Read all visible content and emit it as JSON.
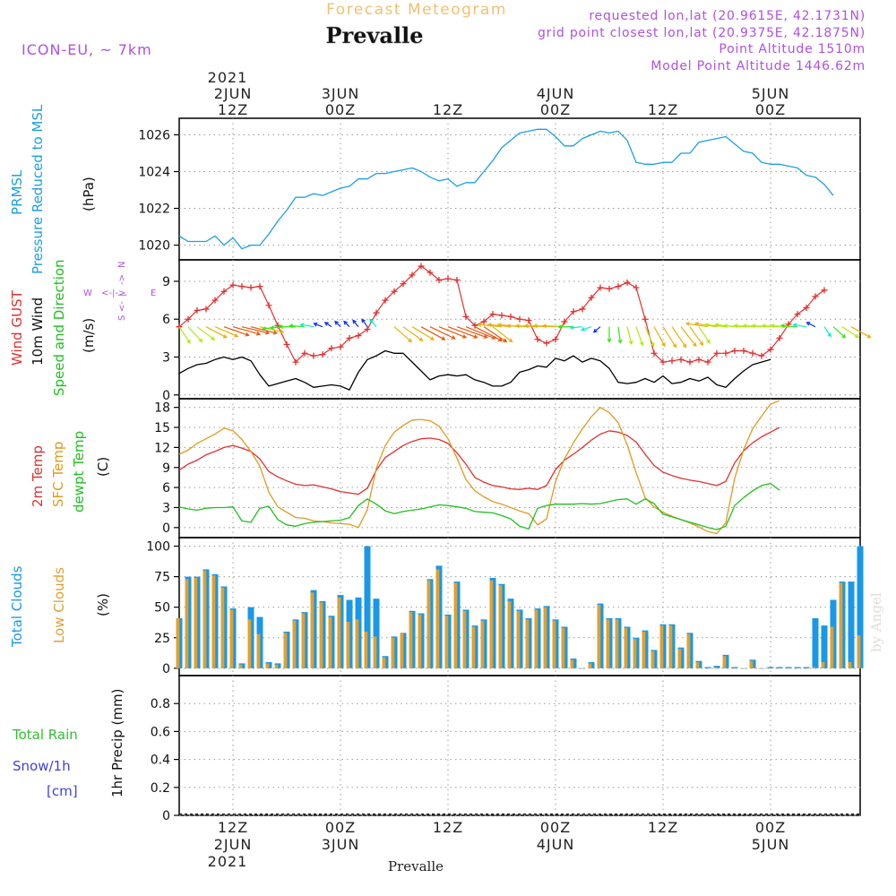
{
  "header": {
    "title": "Forecast Meteogram",
    "location": "Prevalle",
    "model": "ICON-EU, ~ 7km",
    "requested": "requested lon,lat (20.9615E, 42.1731N)",
    "grid_point": "grid point closest lon,lat (20.9375E, 42.1875N)",
    "point_altitude": "Point Altitude 1510m",
    "model_altitude": "Model Point Altitude 1446.62m"
  },
  "footer": {
    "location": "Prevalle",
    "watermark": "by Angel"
  },
  "time_axis": {
    "year": "2021",
    "ticks": [
      {
        "hour": 12,
        "top": "12Z",
        "date": "2JUN"
      },
      {
        "hour": 24,
        "top": "00Z",
        "date": "3JUN"
      },
      {
        "hour": 36,
        "top": "12Z",
        "date": ""
      },
      {
        "hour": 48,
        "top": "00Z",
        "date": "4JUN"
      },
      {
        "hour": 60,
        "top": "12Z",
        "date": ""
      },
      {
        "hour": 72,
        "top": "00Z",
        "date": "5JUN"
      }
    ],
    "range_hours": [
      6,
      82
    ]
  },
  "labels": {
    "pressure": {
      "line1": "PRMSL",
      "line2": "Pressure Reduced to MSL",
      "unit": "(hPa)"
    },
    "wind": {
      "gust": "Wind GUST",
      "wind10": "10m Wind",
      "speed_dir": "Speed and Direction",
      "unit": "(m/s)",
      "compass": {
        "n": "N",
        "s": "S",
        "w": "W",
        "e": "E",
        "ew_arrow": "<-|->",
        "ns_top": "->",
        "ns_bot": "<-",
        "ns_mid": "|"
      }
    },
    "temp": {
      "t2m": "2m Temp",
      "sfc": "SFC Temp",
      "dew": "dewpt Temp",
      "unit": "(C)"
    },
    "cloud": {
      "total": "Total Clouds",
      "low": "Low Clouds",
      "unit": "(%)"
    },
    "precip": {
      "rain": "Total   Rain",
      "snow": "Snow/1h",
      "snow_unit": "[cm]",
      "unit": "1hr Precip (mm)"
    }
  },
  "colors": {
    "pressure": "#1aa0e0",
    "gust": "#e03030",
    "wind": "#000000",
    "t2m": "#e03030",
    "sfc": "#e09a20",
    "dew": "#20c020",
    "total_cloud": "#1a98e8",
    "low_cloud": "#e0a030",
    "rain": "#30c030",
    "snow": "#4040e0",
    "title": "#f0c070",
    "info": "#b050e0"
  },
  "chart_data": [
    {
      "type": "line",
      "name": "pressure",
      "series_name": "PRMSL",
      "ylim": [
        1019.2,
        1026.9
      ],
      "yticks": [
        1020,
        1022,
        1024,
        1026
      ],
      "x_start": 6,
      "x_step": 1,
      "values": [
        1020.5,
        1020.2,
        1020.2,
        1020.2,
        1020.5,
        1020.0,
        1020.4,
        1019.8,
        1020.0,
        1020.0,
        1020.6,
        1021.3,
        1021.9,
        1022.6,
        1022.6,
        1022.8,
        1022.7,
        1022.9,
        1023.1,
        1023.2,
        1023.6,
        1023.6,
        1023.9,
        1023.9,
        1024.0,
        1024.1,
        1024.2,
        1024.0,
        1023.7,
        1023.5,
        1023.6,
        1023.2,
        1023.4,
        1023.4,
        1024.0,
        1024.6,
        1025.3,
        1025.7,
        1026.1,
        1026.2,
        1026.3,
        1026.3,
        1025.9,
        1025.4,
        1025.4,
        1025.8,
        1026.0,
        1026.2,
        1026.1,
        1026.2,
        1025.7,
        1024.5,
        1024.4,
        1024.4,
        1024.5,
        1024.5,
        1025.0,
        1025.0,
        1025.6,
        1025.7,
        1025.8,
        1025.9,
        1025.5,
        1025.1,
        1025.0,
        1024.5,
        1024.4,
        1024.4,
        1024.3,
        1024.2,
        1023.8,
        1023.7,
        1023.3,
        1022.7
      ]
    },
    {
      "type": "line",
      "name": "wind",
      "ylim": [
        -0.3,
        10.7
      ],
      "yticks": [
        0,
        3,
        6,
        9
      ],
      "x_start": 6,
      "x_step": 1,
      "series": [
        {
          "name": "Wind GUST",
          "values": [
            5.4,
            6.0,
            6.7,
            6.8,
            7.5,
            8.2,
            8.7,
            8.6,
            8.5,
            8.6,
            7.1,
            5.5,
            4.0,
            2.6,
            3.3,
            3.1,
            3.2,
            3.7,
            3.8,
            4.5,
            4.7,
            5.2,
            6.5,
            7.5,
            8.2,
            8.8,
            9.5,
            10.2,
            9.7,
            9.1,
            9.2,
            9.1,
            6.2,
            5.5,
            5.8,
            6.4,
            6.3,
            6.2,
            6.0,
            5.9,
            4.4,
            4.1,
            4.4,
            5.8,
            6.6,
            6.8,
            7.7,
            8.5,
            8.4,
            8.6,
            8.9,
            8.5,
            6.0,
            3.3,
            2.6,
            2.7,
            2.8,
            2.6,
            2.8,
            2.6,
            3.3,
            3.3,
            3.5,
            3.5,
            3.3,
            3.1,
            3.6,
            4.5,
            5.6,
            6.4,
            6.9,
            7.8,
            8.3
          ]
        },
        {
          "name": "10m Wind",
          "values": [
            1.7,
            2.1,
            2.4,
            2.5,
            2.8,
            3.0,
            2.8,
            3.0,
            2.7,
            1.6,
            0.7,
            0.9,
            1.1,
            1.3,
            1.0,
            0.6,
            0.7,
            0.8,
            0.7,
            0.4,
            1.8,
            2.8,
            3.1,
            3.5,
            3.3,
            3.3,
            2.6,
            1.9,
            1.2,
            1.5,
            1.6,
            1.5,
            1.6,
            1.2,
            1.0,
            0.7,
            0.7,
            1.0,
            1.8,
            2.0,
            2.3,
            2.2,
            2.9,
            2.7,
            3.1,
            2.6,
            2.9,
            2.7,
            2.1,
            1.0,
            0.9,
            1.0,
            1.3,
            1.0,
            1.5,
            0.9,
            1.0,
            1.3,
            1.1,
            1.4,
            0.8,
            0.6,
            1.3,
            1.9,
            2.4,
            2.6,
            2.8
          ]
        }
      ],
      "barbs": [
        {
          "x": 6,
          "dx": 1.0,
          "dy": 1.5
        },
        {
          "x": 7,
          "dx": 1.3,
          "dy": 1.4
        },
        {
          "x": 8,
          "dx": 1.6,
          "dy": 1.2
        },
        {
          "x": 9,
          "dx": 1.9,
          "dy": 1.0
        },
        {
          "x": 10,
          "dx": 2.1,
          "dy": 0.9
        },
        {
          "x": 11,
          "dx": 2.3,
          "dy": 0.8
        },
        {
          "x": 12,
          "dx": 2.5,
          "dy": 0.7
        },
        {
          "x": 13,
          "dx": 2.5,
          "dy": 0.6
        },
        {
          "x": 14,
          "dx": 2.4,
          "dy": 0.6
        },
        {
          "x": 15,
          "dx": 2.2,
          "dy": 0.5
        },
        {
          "x": 17,
          "dx": -1.4,
          "dy": 0.2
        },
        {
          "x": 18,
          "dx": -1.5,
          "dy": 0.1
        },
        {
          "x": 19,
          "dx": -1.5,
          "dy": 0.0
        },
        {
          "x": 20,
          "dx": -1.4,
          "dy": -0.1
        },
        {
          "x": 21,
          "dx": -1.2,
          "dy": -0.2
        },
        {
          "x": 22,
          "dx": -0.8,
          "dy": -0.3
        },
        {
          "x": 23,
          "dx": -0.6,
          "dy": -0.4
        },
        {
          "x": 24,
          "dx": -0.5,
          "dy": -0.5
        },
        {
          "x": 25,
          "dx": -0.5,
          "dy": -0.5
        },
        {
          "x": 26,
          "dx": -0.5,
          "dy": -0.6
        },
        {
          "x": 27,
          "dx": -0.5,
          "dy": -0.7
        },
        {
          "x": 28,
          "dx": -0.6,
          "dy": -0.7
        },
        {
          "x": 30,
          "dx": 1.6,
          "dy": 1.4
        },
        {
          "x": 31,
          "dx": 1.8,
          "dy": 1.3
        },
        {
          "x": 32,
          "dx": 2.0,
          "dy": 1.2
        },
        {
          "x": 33,
          "dx": 2.2,
          "dy": 1.2
        },
        {
          "x": 34,
          "dx": 2.3,
          "dy": 1.1
        },
        {
          "x": 35,
          "dx": 2.5,
          "dy": 1.0
        },
        {
          "x": 36,
          "dx": 2.7,
          "dy": 1.0
        },
        {
          "x": 37,
          "dx": 2.8,
          "dy": 1.0
        },
        {
          "x": 38,
          "dx": 2.7,
          "dy": 1.1
        },
        {
          "x": 39,
          "dx": 2.5,
          "dy": 1.3
        },
        {
          "x": 40,
          "dx": 2.1,
          "dy": 1.4
        },
        {
          "x": 41,
          "dx": 1.8,
          "dy": 1.4
        },
        {
          "x": 42,
          "dx": -2.2,
          "dy": -0.2
        },
        {
          "x": 43,
          "dx": -2.1,
          "dy": -0.2
        },
        {
          "x": 44,
          "dx": -2.0,
          "dy": -0.2
        },
        {
          "x": 45,
          "dx": -2.0,
          "dy": -0.1
        },
        {
          "x": 46,
          "dx": -2.0,
          "dy": -0.1
        },
        {
          "x": 47,
          "dx": -2.0,
          "dy": -0.1
        },
        {
          "x": 48,
          "dx": -2.0,
          "dy": -0.1
        },
        {
          "x": 49,
          "dx": -2.0,
          "dy": -0.1
        },
        {
          "x": 50,
          "dx": -1.4,
          "dy": 0.0
        },
        {
          "x": 51,
          "dx": -1.1,
          "dy": 0.1
        },
        {
          "x": 52,
          "dx": -0.9,
          "dy": 0.3
        },
        {
          "x": 53,
          "dx": -0.6,
          "dy": 0.5
        },
        {
          "x": 54,
          "dx": 0.0,
          "dy": 1.4
        },
        {
          "x": 55,
          "dx": 0.2,
          "dy": 1.5
        },
        {
          "x": 56,
          "dx": 0.4,
          "dy": 1.6
        },
        {
          "x": 57,
          "dx": 0.6,
          "dy": 1.7
        },
        {
          "x": 58,
          "dx": 0.8,
          "dy": 1.8
        },
        {
          "x": 59,
          "dx": 1.0,
          "dy": 1.8
        },
        {
          "x": 60,
          "dx": 1.2,
          "dy": 1.9
        },
        {
          "x": 61,
          "dx": 1.3,
          "dy": 1.9
        },
        {
          "x": 62,
          "dx": 1.4,
          "dy": 1.8
        },
        {
          "x": 63,
          "dx": 1.2,
          "dy": 1.7
        },
        {
          "x": 64,
          "dx": 1.0,
          "dy": 1.5
        },
        {
          "x": 65,
          "dx": -2.0,
          "dy": -0.3
        },
        {
          "x": 66,
          "dx": -2.0,
          "dy": -0.3
        },
        {
          "x": 67,
          "dx": -1.9,
          "dy": -0.2
        },
        {
          "x": 68,
          "dx": -1.8,
          "dy": -0.2
        },
        {
          "x": 69,
          "dx": -1.8,
          "dy": -0.1
        },
        {
          "x": 70,
          "dx": -1.7,
          "dy": -0.1
        },
        {
          "x": 71,
          "dx": -1.7,
          "dy": -0.1
        },
        {
          "x": 72,
          "dx": -1.7,
          "dy": -0.1
        },
        {
          "x": 73,
          "dx": -1.6,
          "dy": -0.1
        },
        {
          "x": 74,
          "dx": -1.6,
          "dy": -0.1
        },
        {
          "x": 75,
          "dx": -1.5,
          "dy": -0.1
        },
        {
          "x": 76,
          "dx": -1.2,
          "dy": -0.2
        },
        {
          "x": 77,
          "dx": -0.8,
          "dy": -0.4
        },
        {
          "x": 78,
          "dx": 0.6,
          "dy": 0.9
        },
        {
          "x": 79,
          "dx": 1.1,
          "dy": 1.0
        },
        {
          "x": 80,
          "dx": 1.5,
          "dy": 1.0
        },
        {
          "x": 81,
          "dx": 1.8,
          "dy": 1.0
        }
      ]
    },
    {
      "type": "line",
      "name": "temperature",
      "ylim": [
        -1.5,
        19.3
      ],
      "yticks": [
        0,
        3,
        6,
        9,
        12,
        15,
        18
      ],
      "x_start": 6,
      "x_step": 1,
      "series": [
        {
          "name": "2m Temp",
          "values": [
            8.6,
            9.5,
            10.1,
            10.9,
            11.4,
            12.0,
            12.3,
            11.9,
            11.4,
            10.3,
            8.4,
            7.6,
            7.0,
            6.5,
            6.3,
            6.4,
            6.1,
            5.8,
            5.4,
            5.2,
            5.0,
            5.9,
            8.6,
            10.5,
            11.4,
            12.3,
            12.9,
            13.3,
            13.4,
            13.2,
            12.6,
            11.2,
            9.5,
            7.5,
            6.8,
            6.3,
            6.1,
            5.8,
            5.7,
            5.9,
            5.7,
            6.3,
            8.7,
            10.1,
            11.0,
            12.0,
            13.1,
            14.0,
            14.5,
            14.3,
            13.8,
            12.8,
            11.0,
            9.3,
            8.3,
            7.8,
            7.4,
            7.1,
            6.9,
            6.6,
            6.3,
            6.9,
            9.7,
            11.5,
            12.7,
            13.6,
            14.3,
            15.0
          ]
        },
        {
          "name": "SFC Temp",
          "values": [
            11.0,
            11.6,
            12.6,
            13.3,
            14.0,
            14.9,
            14.5,
            13.2,
            11.4,
            9.2,
            5.3,
            3.1,
            2.3,
            1.5,
            1.4,
            1.0,
            0.9,
            0.7,
            0.6,
            0.5,
            0.0,
            2.7,
            8.9,
            12.3,
            14.3,
            15.3,
            16.1,
            16.2,
            16.0,
            15.2,
            13.3,
            10.4,
            7.2,
            5.5,
            4.6,
            3.9,
            3.5,
            3.0,
            2.5,
            2.1,
            0.4,
            1.3,
            6.9,
            10.3,
            12.7,
            14.8,
            16.6,
            18.0,
            17.2,
            15.7,
            12.4,
            8.2,
            4.5,
            3.1,
            2.3,
            1.7,
            1.2,
            0.7,
            0.1,
            -0.6,
            -0.9,
            0.7,
            7.4,
            11.7,
            14.8,
            16.7,
            18.5,
            19.0
          ]
        },
        {
          "name": "dewpt Temp",
          "values": [
            3.1,
            2.8,
            2.6,
            2.9,
            3.0,
            3.0,
            3.1,
            1.0,
            0.8,
            2.9,
            3.2,
            1.2,
            0.4,
            0.2,
            0.6,
            0.8,
            0.9,
            1.0,
            1.1,
            1.5,
            3.3,
            4.3,
            3.5,
            2.5,
            2.1,
            2.4,
            2.6,
            2.8,
            3.1,
            3.4,
            3.3,
            3.1,
            2.9,
            2.4,
            2.3,
            2.2,
            1.8,
            1.3,
            0.2,
            -0.2,
            2.9,
            3.3,
            3.5,
            3.5,
            3.5,
            3.6,
            3.5,
            3.6,
            3.9,
            4.2,
            4.3,
            3.5,
            4.3,
            3.6,
            2.0,
            1.6,
            1.2,
            0.8,
            0.4,
            0.0,
            -0.3,
            0.2,
            3.3,
            4.5,
            5.5,
            6.3,
            6.6,
            5.6
          ]
        }
      ]
    },
    {
      "type": "bar",
      "name": "clouds",
      "ylim": [
        -6,
        107
      ],
      "yticks": [
        0,
        25,
        50,
        75,
        100
      ],
      "x_start": 6,
      "x_step": 1,
      "series": [
        {
          "name": "Total Clouds",
          "values": [
            41,
            75,
            75,
            81,
            77,
            67,
            49,
            4,
            50,
            42,
            5,
            4,
            30,
            40,
            46,
            64,
            55,
            43,
            60,
            56,
            58,
            100,
            57,
            10,
            26,
            29,
            47,
            45,
            73,
            84,
            44,
            71,
            48,
            35,
            40,
            74,
            69,
            57,
            48,
            41,
            49,
            51,
            40,
            34,
            8,
            0,
            5,
            53,
            41,
            41,
            34,
            25,
            31,
            15,
            36,
            36,
            17,
            29,
            6,
            1,
            2,
            11,
            1,
            0,
            7,
            0,
            1,
            1,
            1,
            1,
            1,
            41,
            35,
            56,
            71,
            71,
            100
          ]
        },
        {
          "name": "Low Clouds",
          "values": [
            41,
            73,
            74,
            80,
            76,
            66,
            48,
            3,
            40,
            28,
            4,
            3,
            29,
            39,
            45,
            62,
            54,
            42,
            58,
            38,
            40,
            30,
            26,
            9,
            25,
            29,
            46,
            44,
            72,
            81,
            43,
            70,
            47,
            34,
            39,
            72,
            68,
            55,
            47,
            40,
            48,
            50,
            39,
            33,
            7,
            0,
            4,
            52,
            40,
            40,
            33,
            24,
            30,
            14,
            35,
            35,
            16,
            28,
            5,
            0,
            1,
            10,
            0,
            0,
            6,
            0,
            0,
            0,
            0,
            0,
            0,
            1,
            5,
            34,
            70,
            5,
            27
          ]
        }
      ]
    },
    {
      "type": "bar",
      "name": "precipitation",
      "ylim": [
        0,
        1.0
      ],
      "yticks": [
        0,
        0.2,
        0.4,
        0.6,
        0.8
      ],
      "x_start": 6,
      "x_step": 1,
      "series": [
        {
          "name": "Total Rain",
          "values": []
        },
        {
          "name": "Snow/1h",
          "values": []
        }
      ]
    }
  ]
}
